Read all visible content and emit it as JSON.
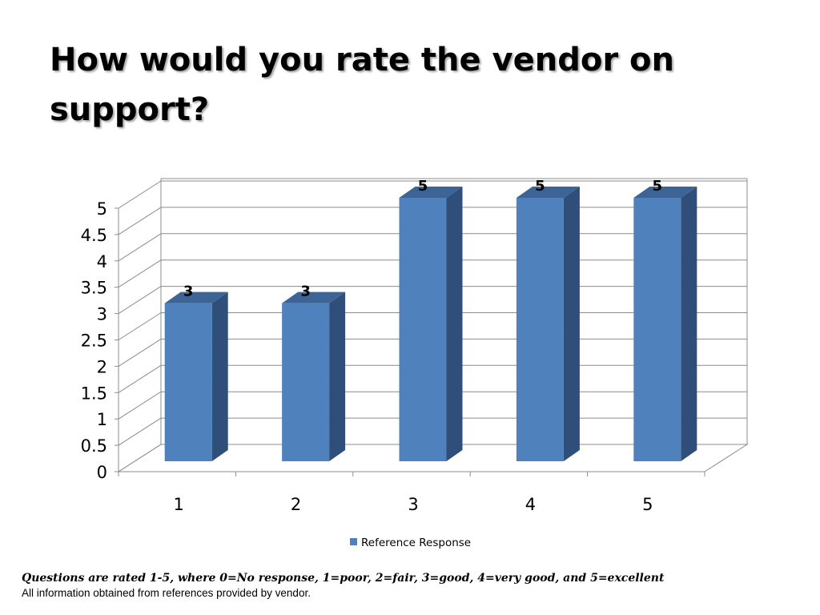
{
  "slide": {
    "title": "How would you rate the vendor on support?"
  },
  "chart_data": {
    "type": "bar",
    "categories": [
      "1",
      "2",
      "3",
      "4",
      "5"
    ],
    "series": [
      {
        "name": "Reference Response",
        "values": [
          3,
          3,
          5,
          5,
          5
        ],
        "color": "#4F81BD",
        "side_color": "#2F4F7A",
        "top_color": "#3C6496"
      }
    ],
    "data_labels": [
      "3",
      "3",
      "5",
      "5",
      "5"
    ],
    "y_ticks": [
      "0",
      "0.5",
      "1",
      "1.5",
      "2",
      "2.5",
      "3",
      "3.5",
      "4",
      "4.5",
      "5"
    ],
    "ylim": [
      0,
      5
    ],
    "y_step": 0.5,
    "grid": true,
    "legend_position": "bottom",
    "style": "3d-column"
  },
  "footnote": {
    "rating_scale": "Questions are rated 1-5, where 0=No response, 1=poor, 2=fair, 3=good, 4=very good, and 5=excellent",
    "source": "All information obtained from references provided by vendor."
  }
}
